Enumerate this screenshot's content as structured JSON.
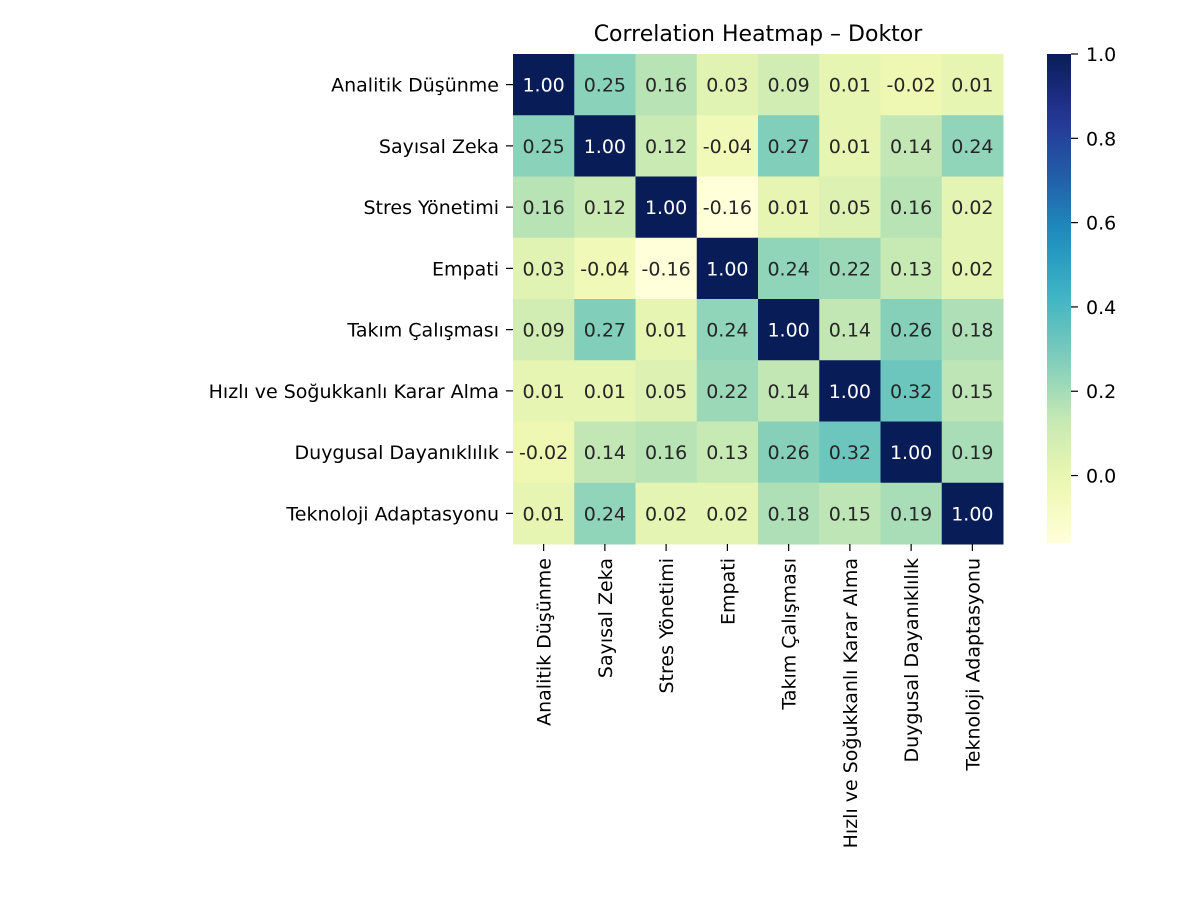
{
  "chart_data": {
    "type": "heatmap",
    "title": "Correlation Heatmap – Doktor",
    "row_labels": [
      "Analitik Düşünme",
      "Sayısal Zeka",
      "Stres Yönetimi",
      "Empati",
      "Takım Çalışması",
      "Hızlı ve Soğukkanlı Karar Alma",
      "Duygusal Dayanıklılık",
      "Teknoloji Adaptasyonu"
    ],
    "col_labels": [
      "Analitik Düşünme",
      "Sayısal Zeka",
      "Stres Yönetimi",
      "Empati",
      "Takım Çalışması",
      "Hızlı ve Soğukkanlı Karar Alma",
      "Duygusal Dayanıklılık",
      "Teknoloji Adaptasyonu"
    ],
    "values": [
      [
        1.0,
        0.25,
        0.16,
        0.03,
        0.09,
        0.01,
        -0.02,
        0.01
      ],
      [
        0.25,
        1.0,
        0.12,
        -0.04,
        0.27,
        0.01,
        0.14,
        0.24
      ],
      [
        0.16,
        0.12,
        1.0,
        -0.16,
        0.01,
        0.05,
        0.16,
        0.02
      ],
      [
        0.03,
        -0.04,
        -0.16,
        1.0,
        0.24,
        0.22,
        0.13,
        0.02
      ],
      [
        0.09,
        0.27,
        0.01,
        0.24,
        1.0,
        0.14,
        0.26,
        0.18
      ],
      [
        0.01,
        0.01,
        0.05,
        0.22,
        0.14,
        1.0,
        0.32,
        0.15
      ],
      [
        -0.02,
        0.14,
        0.16,
        0.13,
        0.26,
        0.32,
        1.0,
        0.19
      ],
      [
        0.01,
        0.24,
        0.02,
        0.02,
        0.18,
        0.15,
        0.19,
        1.0
      ]
    ],
    "colormap": "YlGnBu",
    "value_range": [
      -0.16,
      1.0
    ],
    "colorbar_ticks": [
      "0.0",
      "0.2",
      "0.4",
      "0.6",
      "0.8",
      "1.0"
    ],
    "colorbar_tick_values": [
      0.0,
      0.2,
      0.4,
      0.6,
      0.8,
      1.0
    ],
    "annotation_format": "2 decimals",
    "grid": false
  }
}
